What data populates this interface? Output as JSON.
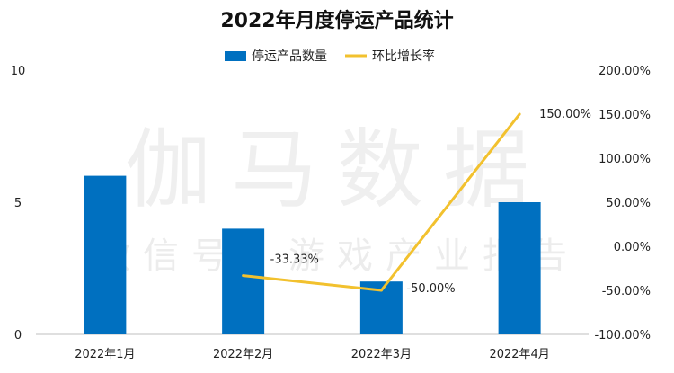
{
  "chart_data": {
    "type": "bar+line",
    "title": "2022年月度停运产品统计",
    "categories": [
      "2022年1月",
      "2022年2月",
      "2022年3月",
      "2022年4月"
    ],
    "series": [
      {
        "name": "停运产品数量",
        "type": "bar",
        "axis": "left",
        "color": "#0070C0",
        "values": [
          6,
          4,
          2,
          5
        ]
      },
      {
        "name": "环比增长率",
        "type": "line",
        "axis": "right",
        "color": "#F2C12E",
        "values": [
          null,
          -33.33,
          -50.0,
          150.0
        ],
        "labels": [
          "",
          "-33.33%",
          "-50.00%",
          "150.00%"
        ]
      }
    ],
    "y_left": {
      "min": 0,
      "max": 10,
      "ticks": [
        "0",
        "5",
        "10"
      ]
    },
    "y_right": {
      "min": -100,
      "max": 200,
      "ticks": [
        "-100.00%",
        "-50.00%",
        "0.00%",
        "50.00%",
        "100.00%",
        "150.00%",
        "200.00%"
      ]
    },
    "legend": "top-center",
    "grid": false
  },
  "watermark": {
    "main": "伽马数据",
    "sub": "微信号：游戏产业报告"
  }
}
